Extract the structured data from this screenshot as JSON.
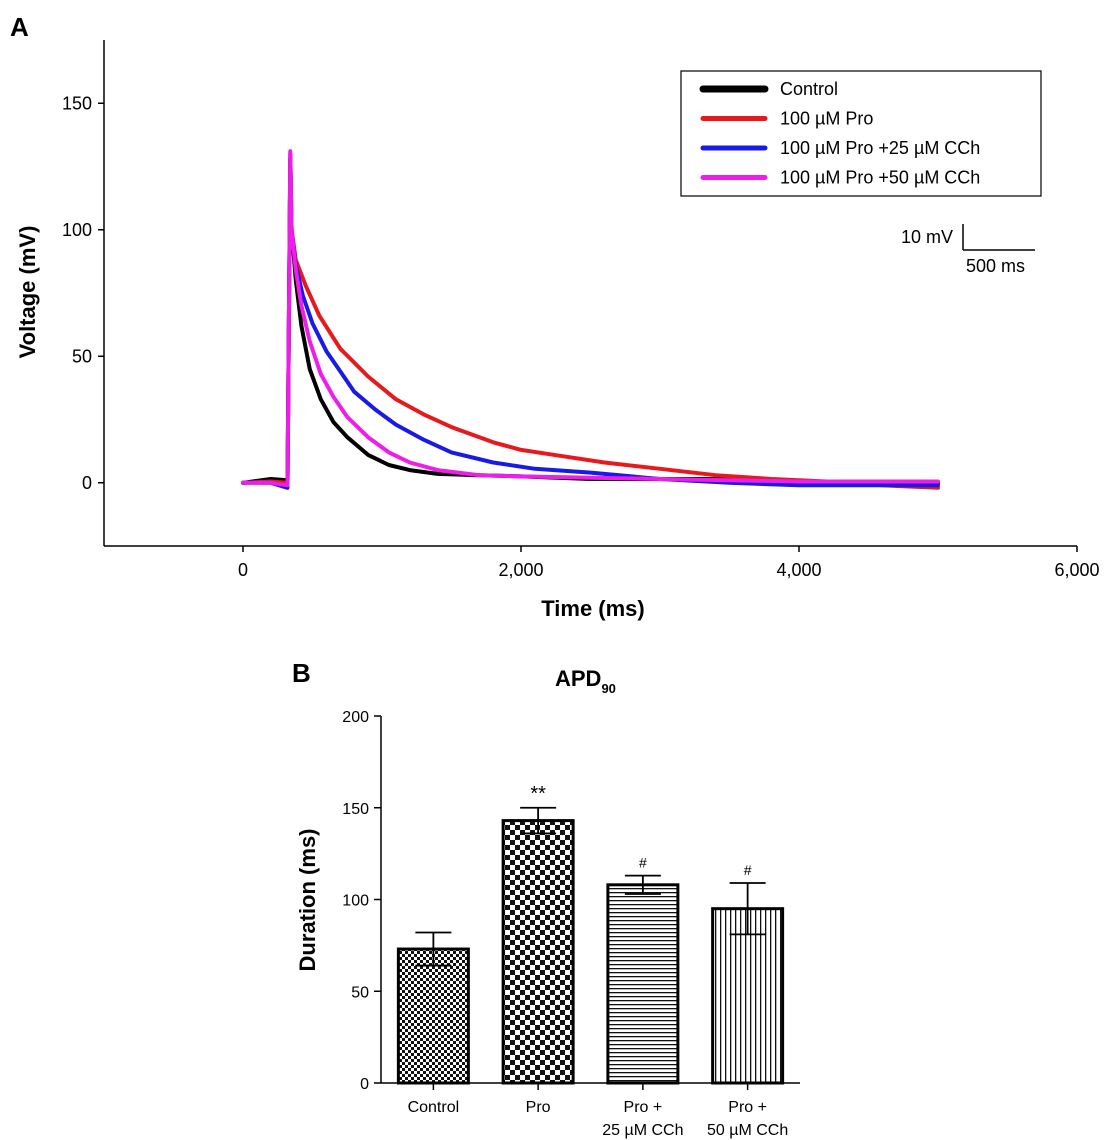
{
  "chart_data": [
    {
      "panel": "A",
      "type": "line",
      "xlabel": "Time (ms)",
      "ylabel": "Voltage (mV)",
      "xlim": [
        -1000,
        6000
      ],
      "ylim": [
        -25,
        175
      ],
      "x_ticks": [
        0,
        2000,
        4000,
        6000
      ],
      "x_tick_labels": [
        "0",
        "2,000",
        "4,000",
        "6,000"
      ],
      "y_ticks": [
        0,
        50,
        100,
        150
      ],
      "y_tick_labels": [
        "0",
        "50",
        "100",
        "150"
      ],
      "grid": false,
      "legend_position": "top-right",
      "scale_bar": {
        "voltage_label": "10 mV",
        "time_label": "500 ms"
      },
      "series": [
        {
          "name": "Control",
          "color": "#000000",
          "x": [
            0,
            200,
            320,
            340,
            350,
            380,
            420,
            480,
            560,
            650,
            750,
            900,
            1050,
            1200,
            1400,
            1700,
            2000,
            2500,
            3000,
            3500,
            4000,
            4500,
            5000
          ],
          "y": [
            0,
            1.5,
            1,
            128,
            100,
            80,
            62,
            45,
            33,
            24,
            18,
            11,
            7,
            5,
            3.5,
            3,
            2.5,
            1.5,
            1.5,
            1.5,
            0,
            0,
            0
          ]
        },
        {
          "name": "100 µM Pro",
          "color": "#e8191c",
          "x": [
            0,
            200,
            320,
            340,
            350,
            380,
            450,
            550,
            700,
            900,
            1100,
            1300,
            1500,
            1800,
            2000,
            2300,
            2600,
            3000,
            3400,
            3800,
            4200,
            4600,
            5000
          ],
          "y": [
            0,
            0.5,
            0,
            128,
            100,
            88,
            78,
            66,
            53,
            42,
            33,
            27,
            22,
            16,
            13,
            10.5,
            8,
            5.5,
            3,
            1.5,
            0.5,
            -1,
            -2
          ]
        },
        {
          "name": "100 µM Pro +25 µM CCh",
          "color": "#1a1ae6",
          "x": [
            0,
            200,
            320,
            340,
            350,
            380,
            430,
            500,
            600,
            700,
            800,
            950,
            1100,
            1300,
            1500,
            1800,
            2100,
            2500,
            3000,
            3500,
            4000,
            4500,
            5000
          ],
          "y": [
            0,
            0,
            -2,
            130,
            100,
            86,
            74,
            63,
            52,
            44,
            36,
            29,
            23,
            17,
            12,
            8,
            5.5,
            4,
            1.5,
            0,
            -1,
            -1,
            -1
          ]
        },
        {
          "name": "100 µM Pro +50 µM CCh",
          "color": "#ee1de8",
          "x": [
            0,
            200,
            320,
            340,
            350,
            380,
            420,
            480,
            560,
            650,
            750,
            900,
            1050,
            1200,
            1400,
            1700,
            2000,
            2500,
            3000,
            3500,
            4000,
            4500,
            5000
          ],
          "y": [
            0,
            0,
            -1,
            131,
            100,
            84,
            70,
            56,
            43,
            34,
            26,
            18,
            12,
            8,
            5,
            3,
            2.5,
            2,
            1.5,
            1,
            0.5,
            0.5,
            0.5
          ]
        }
      ]
    },
    {
      "panel": "B",
      "type": "bar",
      "title_main": "APD",
      "title_sub": "90",
      "ylabel": "Duration (ms)",
      "xlabel": "",
      "ylim": [
        0,
        200
      ],
      "y_ticks": [
        0,
        50,
        100,
        150,
        200
      ],
      "y_tick_labels": [
        "0",
        "50",
        "100",
        "150",
        "200"
      ],
      "categories": [
        {
          "line1": "Control",
          "line2": ""
        },
        {
          "line1": "Pro",
          "line2": ""
        },
        {
          "line1": "Pro +",
          "line2": "25 µM CCh"
        },
        {
          "line1": "Pro +",
          "line2": "50 µM CCh"
        }
      ],
      "values": [
        73,
        143,
        108,
        95
      ],
      "error_sem": [
        9,
        7,
        5,
        14
      ],
      "annotations": [
        "",
        "**",
        "#",
        "#"
      ],
      "fill_patterns": [
        "fine-checker",
        "coarse-checker",
        "horizontal-lines",
        "vertical-lines"
      ]
    }
  ]
}
